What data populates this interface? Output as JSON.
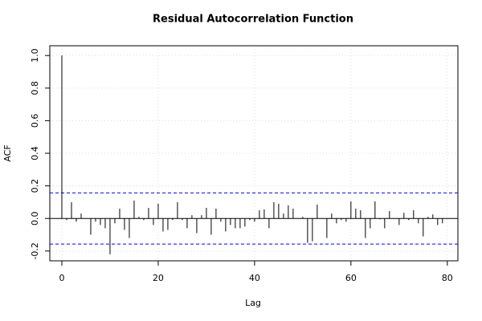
{
  "chart_data": {
    "type": "stem",
    "title": "Residual Autocorrelation Function",
    "x_label": "Lag",
    "y_label": "ACF",
    "x": [
      0,
      1,
      2,
      3,
      4,
      5,
      6,
      7,
      8,
      9,
      10,
      11,
      12,
      13,
      14,
      15,
      16,
      17,
      18,
      19,
      20,
      21,
      22,
      23,
      24,
      25,
      26,
      27,
      28,
      29,
      30,
      31,
      32,
      33,
      34,
      35,
      36,
      37,
      38,
      39,
      40,
      41,
      42,
      43,
      44,
      45,
      46,
      47,
      48,
      49,
      50,
      51,
      52,
      53,
      54,
      55,
      56,
      57,
      58,
      59,
      60,
      61,
      62,
      63,
      64,
      65,
      66,
      67,
      68,
      69,
      70,
      71,
      72,
      73,
      74,
      75,
      76,
      77,
      78,
      79
    ],
    "values": [
      1.0,
      -0.01,
      0.1,
      -0.02,
      0.03,
      0.0,
      -0.1,
      -0.02,
      -0.04,
      -0.06,
      -0.22,
      -0.03,
      0.06,
      -0.07,
      -0.12,
      0.11,
      0.01,
      -0.01,
      0.065,
      -0.04,
      0.09,
      -0.08,
      -0.07,
      -0.01,
      0.1,
      -0.01,
      -0.06,
      0.02,
      -0.09,
      0.02,
      0.065,
      -0.1,
      0.06,
      -0.02,
      -0.08,
      -0.04,
      -0.06,
      -0.06,
      -0.05,
      -0.01,
      -0.02,
      0.05,
      0.055,
      -0.06,
      0.1,
      0.09,
      0.03,
      0.08,
      0.06,
      0.0,
      0.01,
      -0.15,
      -0.14,
      0.085,
      0.0,
      -0.12,
      0.03,
      -0.03,
      -0.01,
      -0.02,
      0.105,
      0.06,
      0.05,
      -0.12,
      -0.06,
      0.105,
      -0.005,
      -0.06,
      0.045,
      0.0,
      -0.04,
      0.035,
      -0.01,
      0.05,
      -0.03,
      -0.11,
      0.01,
      0.025,
      -0.04,
      -0.03
    ],
    "color": "#000000",
    "confidence_bounds": [
      0.157,
      -0.157
    ],
    "confidence_color": "#0000ff",
    "xlim": [
      -2.5,
      82.2
    ],
    "ylim": [
      -0.26,
      1.06
    ],
    "xticks": [
      0,
      20,
      40,
      60,
      80
    ],
    "yticks": [
      -0.2,
      {
        "value": 0,
        "label": "0.0"
      },
      0.2,
      0.4,
      0.6,
      0.8,
      {
        "value": 1,
        "label": "1.0"
      }
    ],
    "grid": true
  }
}
